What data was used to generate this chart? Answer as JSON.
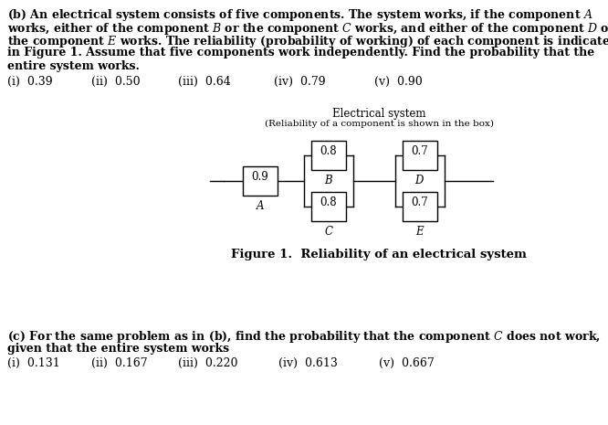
{
  "bg_color": "#ffffff",
  "text_color": "#000000",
  "box_color": "#ffffff",
  "box_edge_color": "#000000",
  "font_size_body": 9.0,
  "font_size_diagram": 8.5,
  "font_size_caption": 9.5,
  "options_b": [
    "(i)  0.39",
    "(ii)  0.50",
    "(iii)  0.64",
    "(iv)  0.79",
    "(v)  0.90"
  ],
  "options_c": [
    "(i)  0.131",
    "(ii)  0.167",
    "(iii)  0.220",
    "(iv)  0.613",
    "(v)  0.667"
  ],
  "diagram_title": "Electrical system",
  "diagram_subtitle": "(Reliability of a component is shown in the box)",
  "figure_caption": "Figure 1.  Reliability of an electrical system",
  "components": {
    "A": "0.9",
    "B": "0.8",
    "C": "0.8",
    "D": "0.7",
    "E": "0.7"
  },
  "part_b_lines": [
    "(b) An electrical system consists of five components. The system works, if the component",
    "works, either of the component",
    "the component",
    "in Figure 1. Assume that five components work independently. Find the probability that the",
    "entire system works."
  ]
}
